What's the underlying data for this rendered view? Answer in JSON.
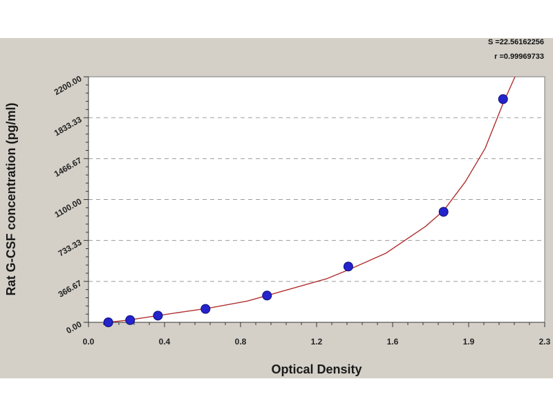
{
  "chart_data": {
    "type": "scatter",
    "title": "",
    "xlabel": "Optical Density",
    "ylabel": "Rat G-CSF concentration (pg/ml)",
    "xlim": [
      0.0,
      2.3
    ],
    "ylim": [
      0.0,
      2200.0
    ],
    "x_ticks": [
      "0.0",
      "0.4",
      "0.8",
      "1.2",
      "1.6",
      "1.9",
      "2.3"
    ],
    "y_ticks": [
      "0.00",
      "366.67",
      "733.33",
      "1100.00",
      "1466.67",
      "1833.33",
      "2200.00"
    ],
    "grid": "horizontal-dashed",
    "stats": {
      "s": "S =22.56162256",
      "r": "r =0.99969733"
    },
    "points": {
      "x": [
        0.1,
        0.21,
        0.35,
        0.59,
        0.9,
        1.31,
        1.79,
        2.09
      ],
      "y": [
        0,
        20,
        60,
        120,
        240,
        500,
        990,
        2000
      ]
    },
    "fit_curve": {
      "x": [
        0.1,
        0.2,
        0.35,
        0.5,
        0.6,
        0.8,
        0.9,
        1.0,
        1.2,
        1.31,
        1.5,
        1.7,
        1.79,
        1.9,
        2.0,
        2.09,
        2.15
      ],
      "y": [
        0,
        20,
        60,
        100,
        125,
        190,
        240,
        290,
        390,
        470,
        620,
        860,
        1000,
        1260,
        1560,
        1960,
        2200
      ]
    },
    "colors": {
      "point": "#2424cc",
      "point_edge": "#0b0b7a",
      "curve": "#b03030",
      "grid": "#9a9a9a",
      "panel": "#d4d0c8",
      "plot_bg": "#ffffff"
    }
  }
}
